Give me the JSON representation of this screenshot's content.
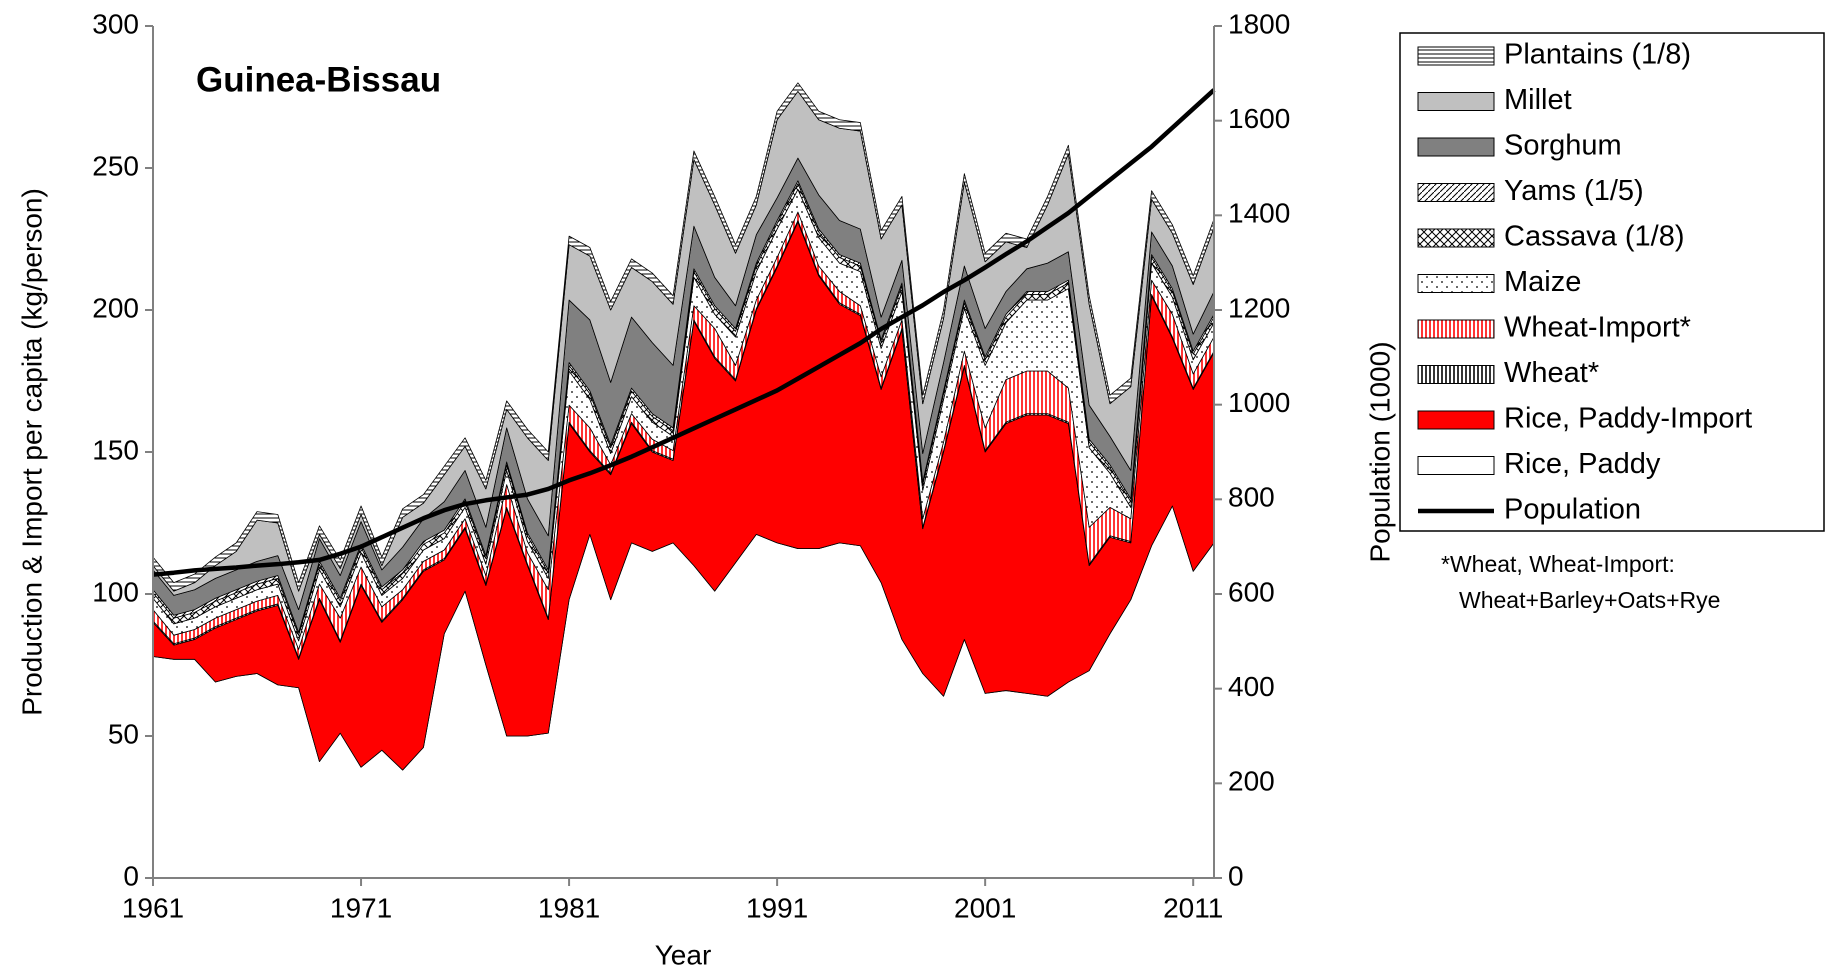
{
  "chart_data": {
    "type": "stacked-area",
    "title": "Guinea-Bissau",
    "xlabel": "Year",
    "ylabel": "Production & Import per capita (kg/person)",
    "y2label": "Population (1000)",
    "annotations": [
      "*Wheat, Wheat-Import:",
      "Wheat+Barley+Oats+Rye"
    ],
    "legend": "right",
    "x": [
      1961,
      1962,
      1963,
      1964,
      1965,
      1966,
      1967,
      1968,
      1969,
      1970,
      1971,
      1972,
      1973,
      1974,
      1975,
      1976,
      1977,
      1978,
      1979,
      1980,
      1981,
      1982,
      1983,
      1984,
      1985,
      1986,
      1987,
      1988,
      1989,
      1990,
      1991,
      1992,
      1993,
      1994,
      1995,
      1996,
      1997,
      1998,
      1999,
      2000,
      2001,
      2002,
      2003,
      2004,
      2005,
      2006,
      2007,
      2008,
      2009,
      2010,
      2011,
      2012
    ],
    "xlim": [
      1961,
      2012
    ],
    "xticks": [
      1961,
      1971,
      1981,
      1991,
      2001,
      2011
    ],
    "ylim": [
      0,
      300
    ],
    "yticks": [
      0,
      50,
      100,
      150,
      200,
      250,
      300
    ],
    "y2lim": [
      0,
      1800
    ],
    "y2ticks": [
      0,
      200,
      400,
      600,
      800,
      1000,
      1200,
      1400,
      1600,
      1800
    ],
    "series": [
      {
        "name": "Rice, Paddy",
        "color": "#ffffff",
        "pattern": "solid",
        "values": [
          78,
          77,
          77,
          69,
          71,
          72,
          68,
          67,
          41,
          51,
          39,
          45,
          38,
          46,
          86,
          101,
          75,
          50,
          50,
          51,
          98,
          121,
          98,
          118,
          115,
          118,
          110,
          101,
          111,
          121,
          118,
          116,
          116,
          118,
          117,
          104,
          84,
          72,
          64,
          84,
          65,
          66,
          65,
          64,
          69,
          73,
          86,
          98,
          117,
          131,
          108,
          118
        ]
      },
      {
        "name": "Rice, Paddy-Import",
        "color": "#ff0000",
        "pattern": "solid",
        "values": [
          12,
          5,
          7,
          19,
          20,
          22,
          28,
          10,
          57,
          32,
          64,
          45,
          60,
          62,
          26,
          22,
          28,
          80,
          60,
          40,
          62,
          29,
          44,
          42,
          35,
          29,
          86,
          82,
          64,
          79,
          97,
          115,
          96,
          84,
          81,
          68,
          109,
          51,
          86,
          96,
          85,
          94,
          98,
          99,
          91,
          37,
          34,
          20,
          88,
          59,
          64,
          67
        ]
      },
      {
        "name": "Wheat*",
        "color": "#000000",
        "pattern": "vlines",
        "values": [
          0.5,
          0.5,
          0.5,
          0.5,
          0.5,
          0.5,
          0.5,
          0.5,
          0.5,
          0.5,
          0.5,
          0.5,
          0.5,
          0.5,
          0.5,
          0.5,
          0.5,
          0.5,
          0.5,
          0.5,
          0.5,
          0.5,
          0.5,
          0.5,
          0.5,
          0.5,
          0.5,
          0.5,
          0.5,
          0.5,
          0.5,
          0.5,
          0.5,
          0.5,
          0.5,
          0.5,
          0.5,
          0.5,
          0.5,
          0.5,
          0.5,
          0.5,
          0.5,
          0.5,
          0.5,
          0.5,
          0.5,
          0.5,
          0.5,
          0.5,
          0.5,
          0.5
        ]
      },
      {
        "name": "Wheat-Import*",
        "color": "#ff0000",
        "pattern": "vlines",
        "values": [
          4,
          3,
          3,
          3,
          3,
          3,
          3,
          3,
          5,
          8,
          6,
          5,
          3,
          3,
          3,
          3,
          3,
          8,
          4,
          10,
          6,
          8,
          3,
          3,
          4,
          3,
          5,
          10,
          5,
          3,
          3,
          3,
          3,
          4,
          3,
          4,
          3,
          3,
          3,
          5,
          8,
          15,
          15,
          15,
          12,
          13,
          10,
          8,
          5,
          8,
          5,
          5
        ]
      },
      {
        "name": "Maize",
        "color": "#000000",
        "pattern": "dots",
        "values": [
          4,
          4,
          4,
          4,
          4,
          4,
          4,
          3,
          5,
          4,
          5,
          4,
          4,
          4,
          4,
          4,
          4,
          5,
          4,
          4,
          12,
          10,
          4,
          6,
          6,
          5,
          10,
          5,
          10,
          10,
          10,
          8,
          10,
          10,
          12,
          10,
          10,
          10,
          15,
          15,
          22,
          20,
          25,
          25,
          35,
          28,
          12,
          4,
          6,
          6,
          5,
          5
        ]
      },
      {
        "name": "Cassava (1/8)",
        "color": "#000000",
        "pattern": "cross",
        "values": [
          2,
          2,
          2,
          2,
          2,
          2,
          2,
          2,
          2,
          2,
          2,
          2,
          2,
          2,
          2,
          2,
          2,
          2,
          2,
          2,
          2,
          2,
          2,
          2,
          2,
          2,
          2,
          2,
          2,
          2,
          2,
          2,
          2,
          2,
          2,
          2,
          2,
          2,
          2,
          2,
          2,
          2,
          2,
          2,
          2,
          2,
          2,
          2,
          2,
          2,
          2,
          2
        ]
      },
      {
        "name": "Yams (1/5)",
        "color": "#000000",
        "pattern": "diag",
        "values": [
          1,
          1,
          1,
          1,
          1,
          1,
          1,
          1,
          1,
          1,
          1,
          1,
          1,
          1,
          1,
          1,
          1,
          1,
          1,
          1,
          1,
          1,
          1,
          1,
          1,
          1,
          1,
          1,
          1,
          1,
          1,
          1,
          1,
          1,
          1,
          1,
          1,
          1,
          1,
          1,
          1,
          1,
          1,
          1,
          1,
          1,
          1,
          1,
          1,
          1,
          1,
          1
        ]
      },
      {
        "name": "Sorghum",
        "color": "#808080",
        "pattern": "solid",
        "values": [
          7,
          7,
          7,
          7,
          7,
          7,
          7,
          8,
          8,
          8,
          8,
          6,
          8,
          8,
          10,
          10,
          10,
          12,
          12,
          12,
          22,
          25,
          22,
          25,
          25,
          22,
          15,
          10,
          8,
          10,
          8,
          8,
          12,
          12,
          12,
          8,
          8,
          10,
          10,
          12,
          10,
          8,
          8,
          10,
          10,
          12,
          10,
          10,
          8,
          8,
          6,
          8
        ]
      },
      {
        "name": "Millet",
        "color": "#c0c0c0",
        "pattern": "solid",
        "values": [
          1.5,
          1.5,
          2.5,
          4.5,
          6.5,
          14.5,
          11.5,
          6.5,
          1.5,
          2.5,
          2.5,
          1.5,
          10.5,
          5.5,
          9.5,
          8.5,
          13.5,
          6.5,
          21.5,
          26.5,
          19.5,
          22.5,
          25.5,
          17.5,
          21.5,
          21.5,
          23.5,
          25.5,
          18.5,
          10.5,
          27.5,
          23.5,
          26.5,
          32.5,
          34.5,
          27.5,
          19.5,
          17.5,
          15.5,
          29.5,
          23.5,
          17.5,
          7.5,
          20.5,
          34.5,
          35.5,
          11.5,
          29.5,
          11.5,
          11.5,
          17.5,
          22.5
        ]
      },
      {
        "name": "Plantains (1/8)",
        "color": "#000000",
        "pattern": "hlines",
        "values": [
          3,
          3,
          3,
          3,
          3,
          3,
          3,
          3,
          3,
          3,
          3,
          3,
          3,
          3,
          3,
          3,
          3,
          3,
          3,
          3,
          3,
          3,
          3,
          3,
          3,
          3,
          3,
          3,
          3,
          3,
          3,
          3,
          3,
          3,
          3,
          3,
          3,
          3,
          3,
          3,
          3,
          3,
          3,
          3,
          3,
          3,
          3,
          3,
          3,
          3,
          3,
          3
        ]
      },
      {
        "name": "Population",
        "color": "#000000",
        "axis": "y2",
        "values": [
          641,
          645,
          650,
          653,
          656,
          660,
          663,
          667,
          672,
          685,
          700,
          720,
          740,
          760,
          777,
          790,
          798,
          804,
          810,
          822,
          840,
          855,
          872,
          890,
          910,
          930,
          950,
          970,
          990,
          1010,
          1030,
          1055,
          1080,
          1105,
          1130,
          1160,
          1185,
          1210,
          1238,
          1263,
          1290,
          1318,
          1345,
          1375,
          1405,
          1440,
          1475,
          1510,
          1545,
          1585,
          1625,
          1665
        ]
      }
    ]
  }
}
